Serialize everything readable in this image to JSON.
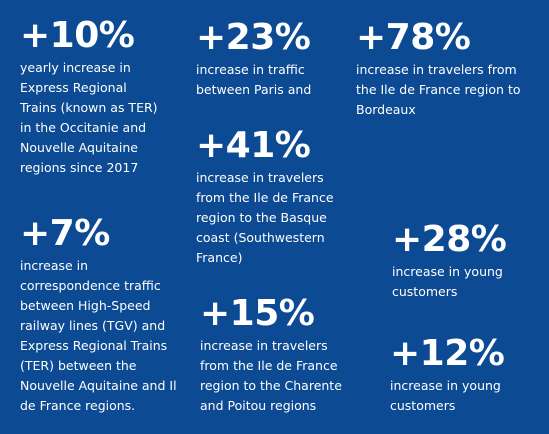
{
  "stats": [
    {
      "value": "+10%",
      "text": "yearly increase  in\nExpress Regional\nTrains  (known  as TER)\nin the Occitanie and\nNouvelle Aquitaine\nregions since 2017"
    },
    {
      "value": "+23%",
      "text": "increase in traffic\nbetween Paris and"
    },
    {
      "value": "+78%",
      "text": "increase in travelers from\nthe Ile de France region to\nBordeaux"
    },
    {
      "value": "+41%",
      "text": "increase in travelers\nfrom the Ile de France\nregion to the Basque\ncoast (Southwestern\nFrance)"
    },
    {
      "value": "+7%",
      "text": "increase in\ncorrespondence traffic\nbetween High-Speed\nrailway lines (TGV) and\nExpress Regional Trains\n(TER) between the\nNouvelle Aquitaine and Il\nde  France regions."
    },
    {
      "value": "+28%",
      "text": "increase in young\ncustomers"
    },
    {
      "value": "+15%",
      "text": "increase in travelers\nfrom the Ile de France\nregion to the Charente\nand Poitou regions"
    },
    {
      "value": "+12%",
      "text": "increase in young\ncustomers"
    }
  ]
}
